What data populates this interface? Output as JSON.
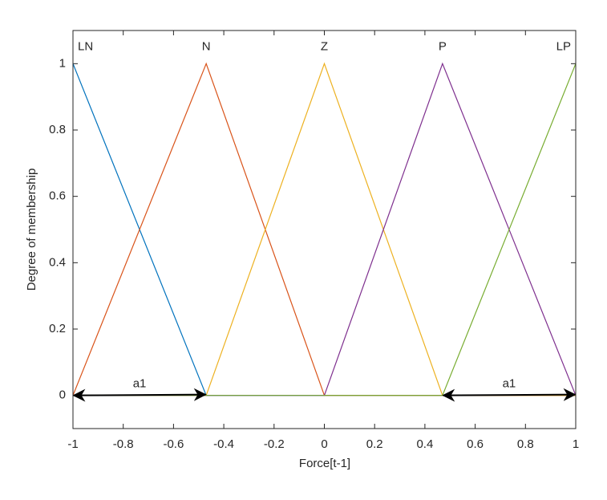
{
  "chart_data": {
    "type": "line",
    "xlabel": "Force[t-1]",
    "ylabel": "Degree of membership",
    "xlim": [
      -1,
      1
    ],
    "ylim": [
      -0.1,
      1.1
    ],
    "xticks": [
      -1,
      -0.8,
      -0.6,
      -0.4,
      -0.2,
      0,
      0.2,
      0.4,
      0.6,
      0.8,
      1
    ],
    "yticks": [
      0,
      0.2,
      0.4,
      0.6,
      0.8,
      1
    ],
    "series": [
      {
        "name": "LN",
        "color": "#0072BD",
        "x": [
          -1,
          -0.47,
          1
        ],
        "values": [
          1,
          0,
          0
        ]
      },
      {
        "name": "N",
        "color": "#D95319",
        "x": [
          -1,
          -0.47,
          0,
          1
        ],
        "values": [
          0,
          1,
          0,
          0
        ]
      },
      {
        "name": "Z",
        "color": "#EDB120",
        "x": [
          -1,
          -0.47,
          0,
          0.47,
          1
        ],
        "values": [
          0,
          0,
          1,
          0,
          0
        ]
      },
      {
        "name": "P",
        "color": "#7E2F8E",
        "x": [
          -1,
          0,
          0.47,
          1
        ],
        "values": [
          0,
          0,
          1,
          0
        ]
      },
      {
        "name": "LP",
        "color": "#77AC30",
        "x": [
          -1,
          0.47,
          1
        ],
        "values": [
          0,
          0,
          1
        ]
      }
    ],
    "annotations": [
      "a1",
      "a1"
    ]
  }
}
